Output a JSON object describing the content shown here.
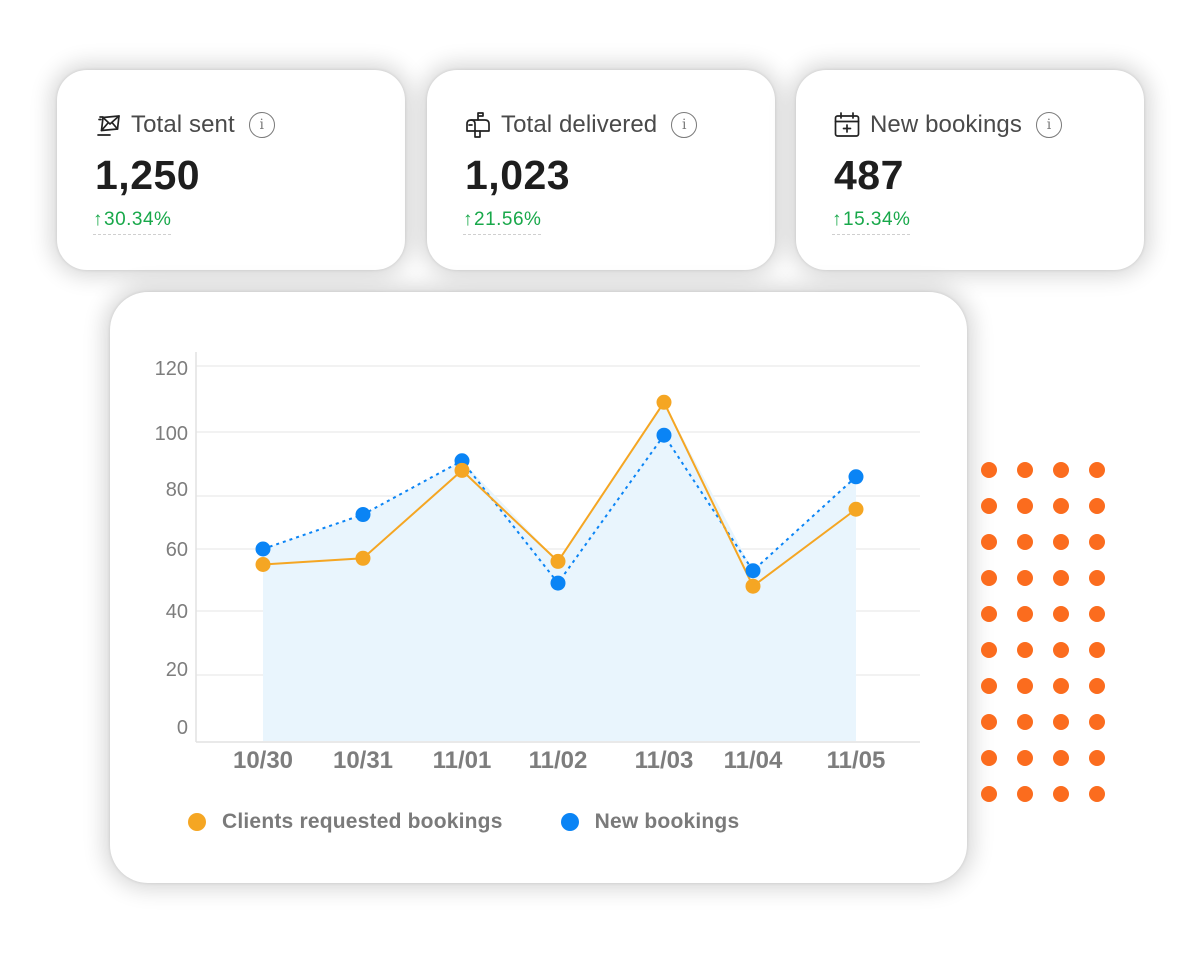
{
  "stats": [
    {
      "icon": "envelope-send-icon",
      "label": "Total sent",
      "value": "1,250",
      "change": "30.34%",
      "change_arrow": "↑",
      "info_icon": "i"
    },
    {
      "icon": "mailbox-icon",
      "label": "Total delivered",
      "value": "1,023",
      "change": "21.56%",
      "change_arrow": "↑",
      "info_icon": "i"
    },
    {
      "icon": "calendar-plus-icon",
      "label": "New bookings",
      "value": "487",
      "change": "15.34%",
      "change_arrow": "↑",
      "info_icon": "i"
    }
  ],
  "colors": {
    "positive": "#18a84a",
    "series_requested": "#f5a623",
    "series_new": "#0a84f5",
    "area_fill": "#e9f5fd",
    "decor_dots": "#fb6c1e"
  },
  "chart_data": {
    "type": "line",
    "title": "",
    "xlabel": "",
    "ylabel": "",
    "categories": [
      "10/30",
      "10/31",
      "11/01",
      "11/02",
      "11/03",
      "11/04",
      "11/05"
    ],
    "y_ticks": [
      0,
      20,
      40,
      60,
      80,
      100,
      120
    ],
    "ylim": [
      0,
      120
    ],
    "grid": true,
    "legend_position": "bottom",
    "series": [
      {
        "name": "Clients requested bookings",
        "color": "#f5a623",
        "style": "solid",
        "values": [
          55,
          57,
          88,
          56,
          109,
          48,
          75
        ]
      },
      {
        "name": "New bookings",
        "color": "#0a84f5",
        "style": "dotted",
        "area_fill": true,
        "values": [
          60,
          73,
          91,
          49,
          99,
          53,
          86
        ]
      }
    ]
  }
}
